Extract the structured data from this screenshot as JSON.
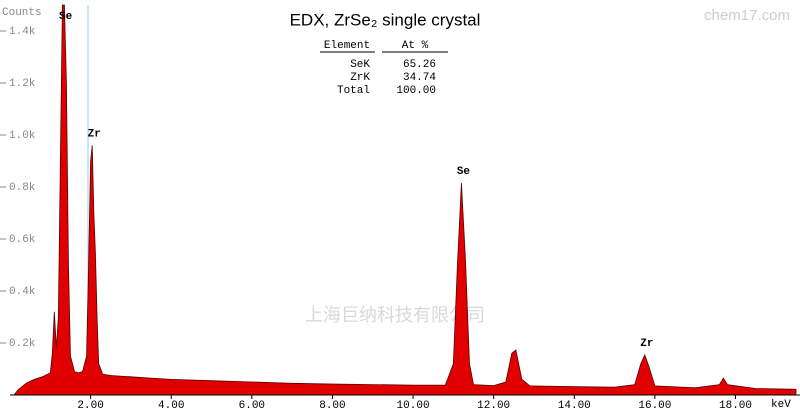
{
  "chart_data": {
    "type": "area",
    "title": "EDX, ZrSe₂ single crystal",
    "y_label": "Counts",
    "x_label": "keV",
    "watermarks": [
      "chem17.com",
      "上海巨纳科技有限公司"
    ],
    "table": {
      "columns": [
        "Element",
        "At %"
      ],
      "rows": [
        [
          "SeK",
          "65.26"
        ],
        [
          "ZrK",
          "34.74"
        ],
        [
          "Total",
          "100.00"
        ]
      ]
    },
    "annotations": [
      {
        "text": "Se",
        "x": 1.33
      },
      {
        "text": "Zr",
        "x": 2.04
      },
      {
        "text": "Se",
        "x": 11.2
      },
      {
        "text": "Zr",
        "x": 15.75
      }
    ],
    "xlim": [
      0,
      19.6
    ],
    "ylim": [
      0,
      1500
    ],
    "xticks": [
      {
        "value": 2,
        "label": "2.00"
      },
      {
        "value": 4,
        "label": "4.00"
      },
      {
        "value": 6,
        "label": "6.00"
      },
      {
        "value": 8,
        "label": "8.00"
      },
      {
        "value": 10,
        "label": "10.00"
      },
      {
        "value": 12,
        "label": "12.00"
      },
      {
        "value": 14,
        "label": "14.00"
      },
      {
        "value": 16,
        "label": "16.00"
      },
      {
        "value": 18,
        "label": "18.00"
      }
    ],
    "yticks": [
      {
        "value": 200,
        "label": "0.2k"
      },
      {
        "value": 400,
        "label": "0.4k"
      },
      {
        "value": 600,
        "label": "0.6k"
      },
      {
        "value": 800,
        "label": "0.8k"
      },
      {
        "value": 1000,
        "label": "1.0k"
      },
      {
        "value": 1200,
        "label": "1.2k"
      },
      {
        "value": 1400,
        "label": "1.4k"
      }
    ],
    "color": "#e00000",
    "x": [
      0.1,
      0.2,
      0.4,
      0.6,
      0.8,
      1.0,
      1.05,
      1.1,
      1.15,
      1.2,
      1.25,
      1.3,
      1.35,
      1.4,
      1.45,
      1.5,
      1.6,
      1.7,
      1.8,
      1.9,
      1.95,
      2.0,
      2.04,
      2.08,
      2.12,
      2.16,
      2.2,
      2.3,
      2.5,
      3.0,
      3.5,
      4.0,
      5.0,
      6.0,
      7.0,
      8.0,
      9.0,
      10.0,
      10.8,
      11.0,
      11.1,
      11.2,
      11.3,
      11.4,
      11.5,
      12.0,
      12.3,
      12.45,
      12.55,
      12.7,
      12.9,
      14.0,
      15.0,
      15.5,
      15.65,
      15.75,
      15.85,
      16.0,
      17.0,
      17.6,
      17.7,
      17.8,
      18.5,
      19.5
    ],
    "values": [
      0,
      20,
      45,
      60,
      70,
      85,
      160,
      320,
      180,
      300,
      900,
      1500,
      1500,
      1200,
      500,
      150,
      90,
      85,
      90,
      150,
      500,
      900,
      960,
      700,
      540,
      300,
      120,
      80,
      75,
      70,
      65,
      60,
      55,
      50,
      45,
      42,
      40,
      38,
      38,
      120,
      500,
      815,
      520,
      120,
      40,
      36,
      50,
      160,
      173,
      60,
      35,
      32,
      30,
      40,
      120,
      154,
      110,
      35,
      28,
      40,
      65,
      40,
      25,
      22
    ]
  }
}
